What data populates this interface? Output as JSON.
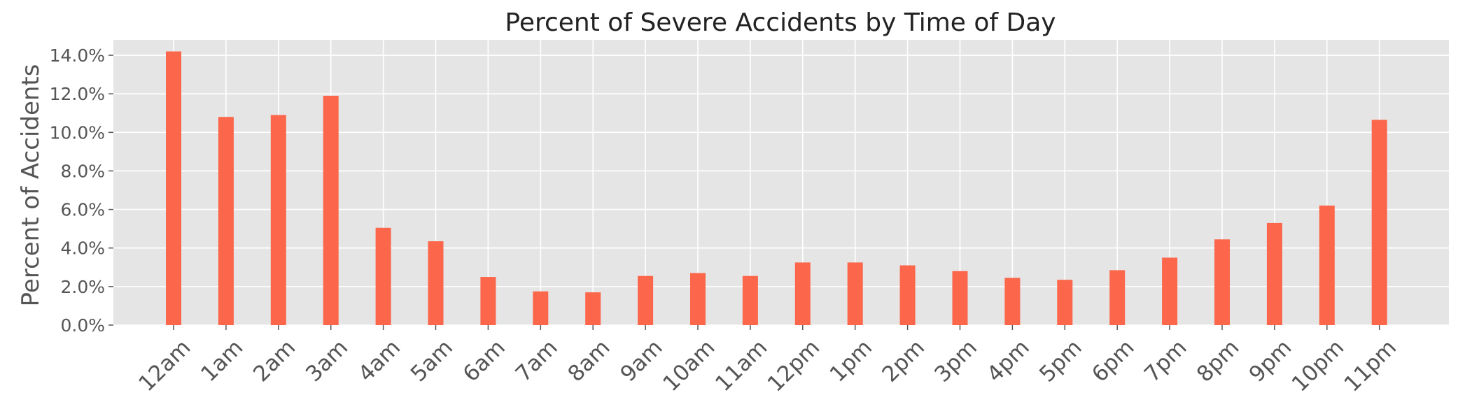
{
  "chart_data": {
    "type": "bar",
    "title": "Percent of Severe Accidents by Time of Day",
    "xlabel": "",
    "ylabel": "Percent of Accidents",
    "categories": [
      "12am",
      "1am",
      "2am",
      "3am",
      "4am",
      "5am",
      "6am",
      "7am",
      "8am",
      "9am",
      "10am",
      "11am",
      "12pm",
      "1pm",
      "2pm",
      "3pm",
      "4pm",
      "5pm",
      "6pm",
      "7pm",
      "8pm",
      "9pm",
      "10pm",
      "11pm"
    ],
    "values": [
      14.2,
      10.8,
      10.9,
      11.9,
      5.05,
      4.35,
      2.5,
      1.75,
      1.7,
      2.55,
      2.7,
      2.55,
      3.25,
      3.25,
      3.1,
      2.8,
      2.45,
      2.35,
      2.85,
      3.5,
      4.45,
      5.3,
      6.2,
      10.65
    ],
    "ylim": [
      0,
      14.8
    ],
    "yticks": [
      0,
      2,
      4,
      6,
      8,
      10,
      12,
      14
    ],
    "ytick_labels": [
      "0.0%",
      "2.0%",
      "4.0%",
      "6.0%",
      "8.0%",
      "10.0%",
      "12.0%",
      "14.0%"
    ],
    "grid": true,
    "colors": {
      "bar": "#fc664a",
      "background": "#e5e5e5",
      "grid": "#ffffff"
    }
  }
}
